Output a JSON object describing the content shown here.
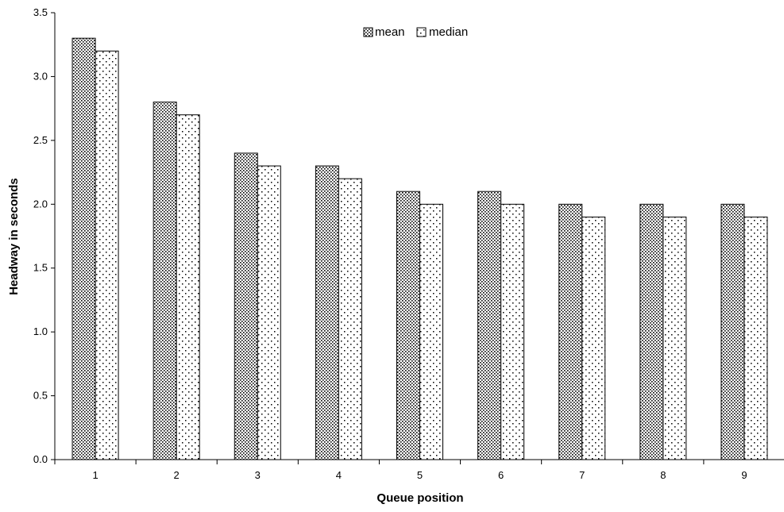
{
  "chart_data": {
    "type": "bar",
    "title": "",
    "xlabel": "Queue position",
    "ylabel": "Headway in seconds",
    "categories": [
      "1",
      "2",
      "3",
      "4",
      "5",
      "6",
      "7",
      "8",
      "9"
    ],
    "series": [
      {
        "name": "mean",
        "values": [
          3.3,
          2.8,
          2.4,
          2.3,
          2.1,
          2.1,
          2.0,
          2.0,
          2.0
        ],
        "pattern": "dense-dots"
      },
      {
        "name": "median",
        "values": [
          3.2,
          2.7,
          2.3,
          2.2,
          2.0,
          2.0,
          1.9,
          1.9,
          1.9
        ],
        "pattern": "sparse-dots"
      }
    ],
    "ylim": [
      0,
      3.5
    ],
    "yticks": [
      "0.0",
      "0.5",
      "1.0",
      "1.5",
      "2.0",
      "2.5",
      "3.0",
      "3.5"
    ],
    "grid": false,
    "legend": "top-center"
  }
}
